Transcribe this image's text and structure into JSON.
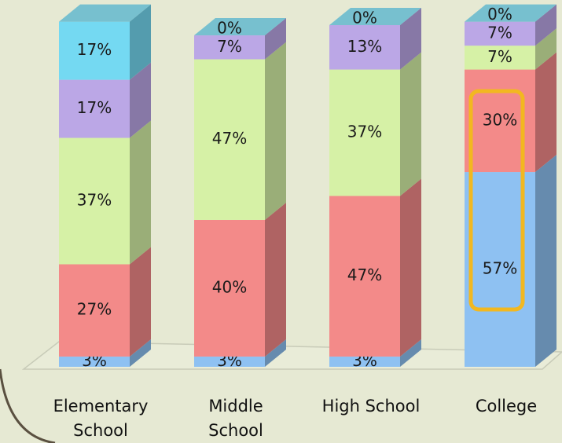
{
  "chart_data": {
    "type": "bar",
    "stacked": true,
    "categories": [
      "Elementary\nSchool",
      "Middle\nSchool",
      "High School",
      "College"
    ],
    "ylim": [
      0,
      100
    ],
    "series": [
      {
        "color": "#8ec1f2",
        "values": [
          3,
          3,
          3,
          57
        ],
        "value_labels": [
          "3%",
          "3%",
          "3%",
          "57%"
        ]
      },
      {
        "color": "#f38a89",
        "values": [
          27,
          40,
          47,
          30
        ],
        "value_labels": [
          "27%",
          "40%",
          "47%",
          "30%"
        ]
      },
      {
        "color": "#d6f1a6",
        "values": [
          37,
          47,
          37,
          7
        ],
        "value_labels": [
          "37%",
          "47%",
          "37%",
          "7%"
        ]
      },
      {
        "color": "#bba7e6",
        "values": [
          17,
          7,
          13,
          7
        ],
        "value_labels": [
          "17%",
          "7%",
          "13%",
          "7%"
        ]
      },
      {
        "color": "#74d9f2",
        "values": [
          17,
          0,
          0,
          0
        ],
        "value_labels": [
          "17%",
          "0%",
          "0%",
          "0%"
        ]
      }
    ]
  }
}
